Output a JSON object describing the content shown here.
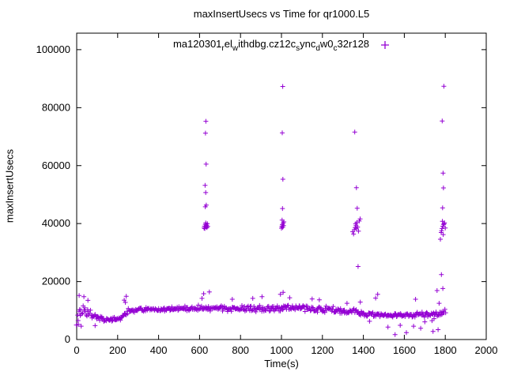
{
  "chart_data": {
    "type": "scatter",
    "title": "maxInsertUsecs vs Time for qr1000.L5",
    "xlabel": "Time(s)",
    "ylabel": "maxInsertUsecs",
    "xlim": [
      0,
      2000
    ],
    "ylim": [
      0,
      105700
    ],
    "xticks": [
      "0",
      "200",
      "400",
      "600",
      "800",
      "1000",
      "1200",
      "1400",
      "1600",
      "1800",
      "2000"
    ],
    "yticks": [
      "0",
      "20000",
      "40000",
      "60000",
      "80000",
      "100000"
    ],
    "xtick_values": [
      0,
      200,
      400,
      600,
      800,
      1000,
      1200,
      1400,
      1600,
      1800,
      2000
    ],
    "ytick_values": [
      0,
      20000,
      40000,
      60000,
      80000,
      100000
    ],
    "grid": false,
    "legend_position": "top-center-inside",
    "marker": {
      "shape": "plus",
      "color": "#9400d3",
      "size": 7
    },
    "series": [
      {
        "name": "ma120301_rel_withdbg.cz12c_sync_dw0_c32r128",
        "legend_segments": [
          {
            "t": "ma120301",
            "sub": false
          },
          {
            "t": "r",
            "sub": true
          },
          {
            "t": "el",
            "sub": false
          },
          {
            "t": "w",
            "sub": true
          },
          {
            "t": "ithdbg.cz12c",
            "sub": false
          },
          {
            "t": "s",
            "sub": true
          },
          {
            "t": "ync",
            "sub": false
          },
          {
            "t": "d",
            "sub": true
          },
          {
            "t": "w0",
            "sub": false
          },
          {
            "t": "c",
            "sub": true
          },
          {
            "t": "32r128",
            "sub": false
          }
        ],
        "band": {
          "comment": "dense steady-state band of samples; control points are [time_s, center_usecs, spread_usecs]",
          "x_start": 0,
          "x_end": 1805,
          "step": 3.5,
          "control_points": [
            [
              0,
              9000,
              4000
            ],
            [
              40,
              9800,
              2000
            ],
            [
              100,
              8300,
              1800
            ],
            [
              130,
              6900,
              900
            ],
            [
              200,
              7000,
              1000
            ],
            [
              228,
              8200,
              1500
            ],
            [
              255,
              10200,
              1200
            ],
            [
              400,
              10200,
              900
            ],
            [
              550,
              10700,
              1100
            ],
            [
              650,
              11000,
              1300
            ],
            [
              800,
              10600,
              1400
            ],
            [
              950,
              10800,
              1400
            ],
            [
              1020,
              11000,
              1500
            ],
            [
              1120,
              10700,
              1200
            ],
            [
              1250,
              10300,
              1300
            ],
            [
              1340,
              9500,
              1500
            ],
            [
              1400,
              8800,
              1100
            ],
            [
              1460,
              8500,
              1000
            ],
            [
              1560,
              8400,
              900
            ],
            [
              1660,
              8600,
              1000
            ],
            [
              1750,
              8800,
              1200
            ],
            [
              1805,
              9200,
              1500
            ]
          ]
        },
        "outliers": [
          [
            8,
            5200
          ],
          [
            12,
            15200
          ],
          [
            22,
            4600
          ],
          [
            35,
            14800
          ],
          [
            55,
            13500
          ],
          [
            90,
            4800
          ],
          [
            232,
            13600
          ],
          [
            238,
            12800
          ],
          [
            242,
            14900
          ],
          [
            612,
            14200
          ],
          [
            620,
            15800
          ],
          [
            648,
            16400
          ],
          [
            760,
            13900
          ],
          [
            860,
            14200
          ],
          [
            905,
            14800
          ],
          [
            622,
            38500
          ],
          [
            624,
            39100
          ],
          [
            626,
            38300
          ],
          [
            628,
            39700
          ],
          [
            630,
            40200
          ],
          [
            632,
            38900
          ],
          [
            634,
            39400
          ],
          [
            636,
            38600
          ],
          [
            638,
            40000
          ],
          [
            640,
            39000
          ],
          [
            628,
            45800
          ],
          [
            633,
            46400
          ],
          [
            630,
            50700
          ],
          [
            627,
            53200
          ],
          [
            632,
            60500
          ],
          [
            629,
            71200
          ],
          [
            631,
            75300
          ],
          [
            995,
            15600
          ],
          [
            1008,
            16300
          ],
          [
            1040,
            14400
          ],
          [
            1000,
            38400
          ],
          [
            1002,
            39000
          ],
          [
            1004,
            39600
          ],
          [
            1006,
            38700
          ],
          [
            1008,
            40100
          ],
          [
            1010,
            39300
          ],
          [
            1012,
            40600
          ],
          [
            1003,
            41200
          ],
          [
            1005,
            45200
          ],
          [
            1007,
            55300
          ],
          [
            1004,
            71300
          ],
          [
            1006,
            87300
          ],
          [
            1150,
            14000
          ],
          [
            1185,
            13700
          ],
          [
            1320,
            12500
          ],
          [
            1385,
            12900
          ],
          [
            1348,
            37200
          ],
          [
            1352,
            36400
          ],
          [
            1356,
            37900
          ],
          [
            1360,
            38600
          ],
          [
            1364,
            39300
          ],
          [
            1368,
            40400
          ],
          [
            1372,
            38800
          ],
          [
            1376,
            37400
          ],
          [
            1380,
            40900
          ],
          [
            1384,
            41600
          ],
          [
            1362,
            39900
          ],
          [
            1366,
            38200
          ],
          [
            1370,
            45300
          ],
          [
            1366,
            52400
          ],
          [
            1358,
            71600
          ],
          [
            1374,
            25200
          ],
          [
            1430,
            6300
          ],
          [
            1460,
            14300
          ],
          [
            1470,
            15600
          ],
          [
            1520,
            4300
          ],
          [
            1555,
            1700
          ],
          [
            1580,
            4900
          ],
          [
            1610,
            2400
          ],
          [
            1645,
            4600
          ],
          [
            1655,
            13900
          ],
          [
            1680,
            3900
          ],
          [
            1700,
            6100
          ],
          [
            1735,
            6500
          ],
          [
            1740,
            2800
          ],
          [
            1745,
            7200
          ],
          [
            1760,
            16900
          ],
          [
            1765,
            3400
          ],
          [
            1770,
            12500
          ],
          [
            1776,
            34600
          ],
          [
            1780,
            36900
          ],
          [
            1784,
            38300
          ],
          [
            1788,
            39100
          ],
          [
            1792,
            39700
          ],
          [
            1796,
            40300
          ],
          [
            1800,
            38500
          ],
          [
            1782,
            37500
          ],
          [
            1786,
            40800
          ],
          [
            1790,
            36200
          ],
          [
            1794,
            39900
          ],
          [
            1787,
            45400
          ],
          [
            1791,
            52300
          ],
          [
            1789,
            57400
          ],
          [
            1785,
            75400
          ],
          [
            1793,
            87400
          ],
          [
            1781,
            22400
          ],
          [
            1788,
            17600
          ]
        ]
      }
    ]
  }
}
